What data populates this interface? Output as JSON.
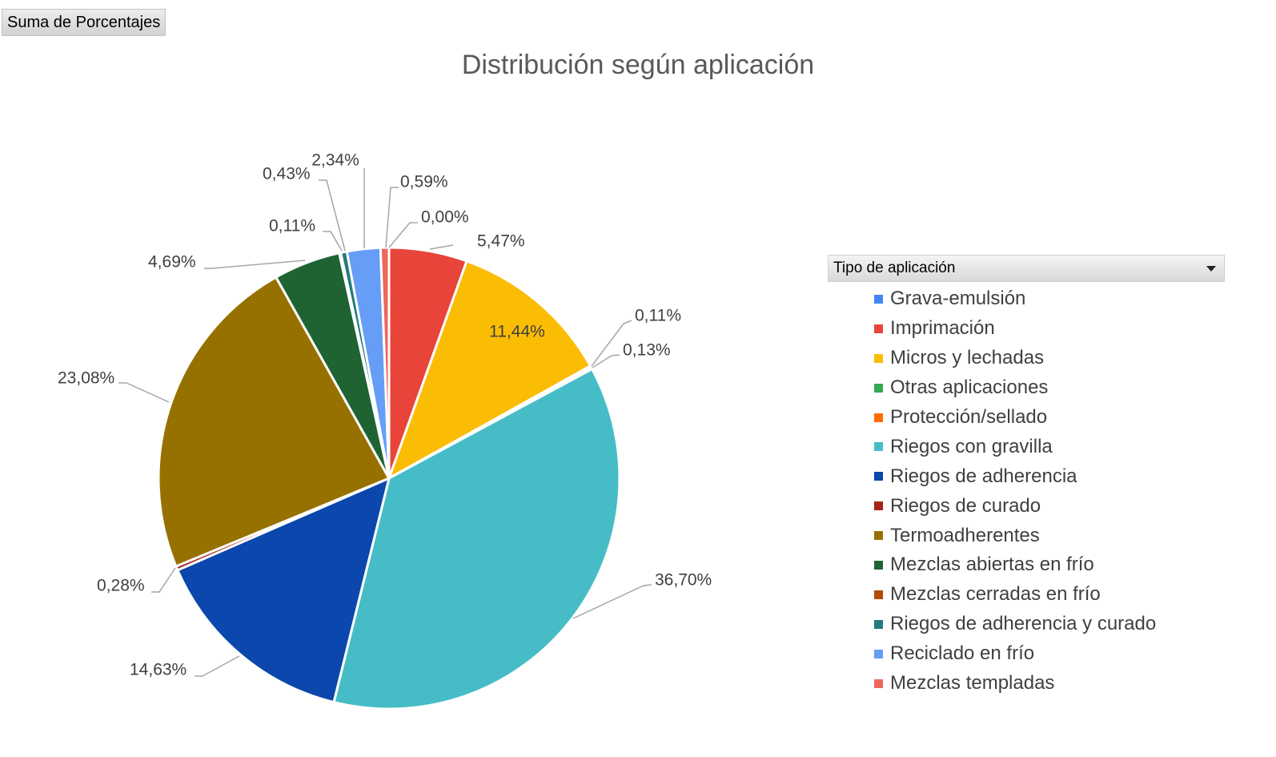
{
  "field_button_label": "Suma de Porcentajes",
  "chart_data": {
    "type": "pie",
    "title": "Distribución según aplicación",
    "legend_title": "Tipo de aplicación",
    "legend_position": "right",
    "start_angle_deg": 0,
    "direction": "clockwise",
    "slices": [
      {
        "label": "Imprimación",
        "value": 5.47,
        "value_label": "5,47%",
        "color": "#e8443a"
      },
      {
        "label": "Micros y lechadas",
        "value": 11.44,
        "value_label": "11,44%",
        "color": "#fbbc04"
      },
      {
        "label": "Otras aplicaciones",
        "value": 0.11,
        "value_label": "0,11%",
        "color": "#34a853"
      },
      {
        "label": "Protección/sellado",
        "value": 0.13,
        "value_label": "0,13%",
        "color": "#ff6d01"
      },
      {
        "label": "Riegos con gravilla",
        "value": 36.7,
        "value_label": "36,70%",
        "color": "#46bdc6"
      },
      {
        "label": "Riegos de adherencia",
        "value": 14.63,
        "value_label": "14,63%",
        "color": "#0b47ac"
      },
      {
        "label": "Riegos de curado",
        "value": 0.28,
        "value_label": "0,28%",
        "color": "#a52217"
      },
      {
        "label": "Termoadherentes",
        "value": 23.08,
        "value_label": "23,08%",
        "color": "#977100"
      },
      {
        "label": "Mezclas abiertas en frío",
        "value": 4.69,
        "value_label": "4,69%",
        "color": "#1f6333"
      },
      {
        "label": "Mezclas cerradas en frío",
        "value": 0.11,
        "value_label": "0,11%",
        "color": "#b34c00"
      },
      {
        "label": "Riegos de adherencia y curado",
        "value": 0.43,
        "value_label": "0,43%",
        "color": "#237b7f"
      },
      {
        "label": "Reciclado en frío",
        "value": 2.34,
        "value_label": "2,34%",
        "color": "#669df6"
      },
      {
        "label": "Mezclas templadas",
        "value": 0.59,
        "value_label": "0,59%",
        "color": "#ee675c"
      },
      {
        "label": "Grava-emulsión",
        "value": 0.0,
        "value_label": "0,00%",
        "color": "#4285f4"
      }
    ],
    "legend_order": [
      {
        "label": "Grava-emulsión",
        "color": "#4285f4"
      },
      {
        "label": "Imprimación",
        "color": "#e8443a"
      },
      {
        "label": "Micros y lechadas",
        "color": "#fbbc04"
      },
      {
        "label": "Otras aplicaciones",
        "color": "#34a853"
      },
      {
        "label": "Protección/sellado",
        "color": "#ff6d01"
      },
      {
        "label": "Riegos con gravilla",
        "color": "#46bdc6"
      },
      {
        "label": "Riegos de adherencia",
        "color": "#0b47ac"
      },
      {
        "label": "Riegos de curado",
        "color": "#a52217"
      },
      {
        "label": "Termoadherentes",
        "color": "#977100"
      },
      {
        "label": "Mezclas abiertas en frío",
        "color": "#1f6333"
      },
      {
        "label": "Mezclas cerradas en frío",
        "color": "#b34c00"
      },
      {
        "label": "Riegos de adherencia y curado",
        "color": "#237b7f"
      },
      {
        "label": "Reciclado en frío",
        "color": "#669df6"
      },
      {
        "label": "Mezclas templadas",
        "color": "#ee675c"
      }
    ]
  }
}
